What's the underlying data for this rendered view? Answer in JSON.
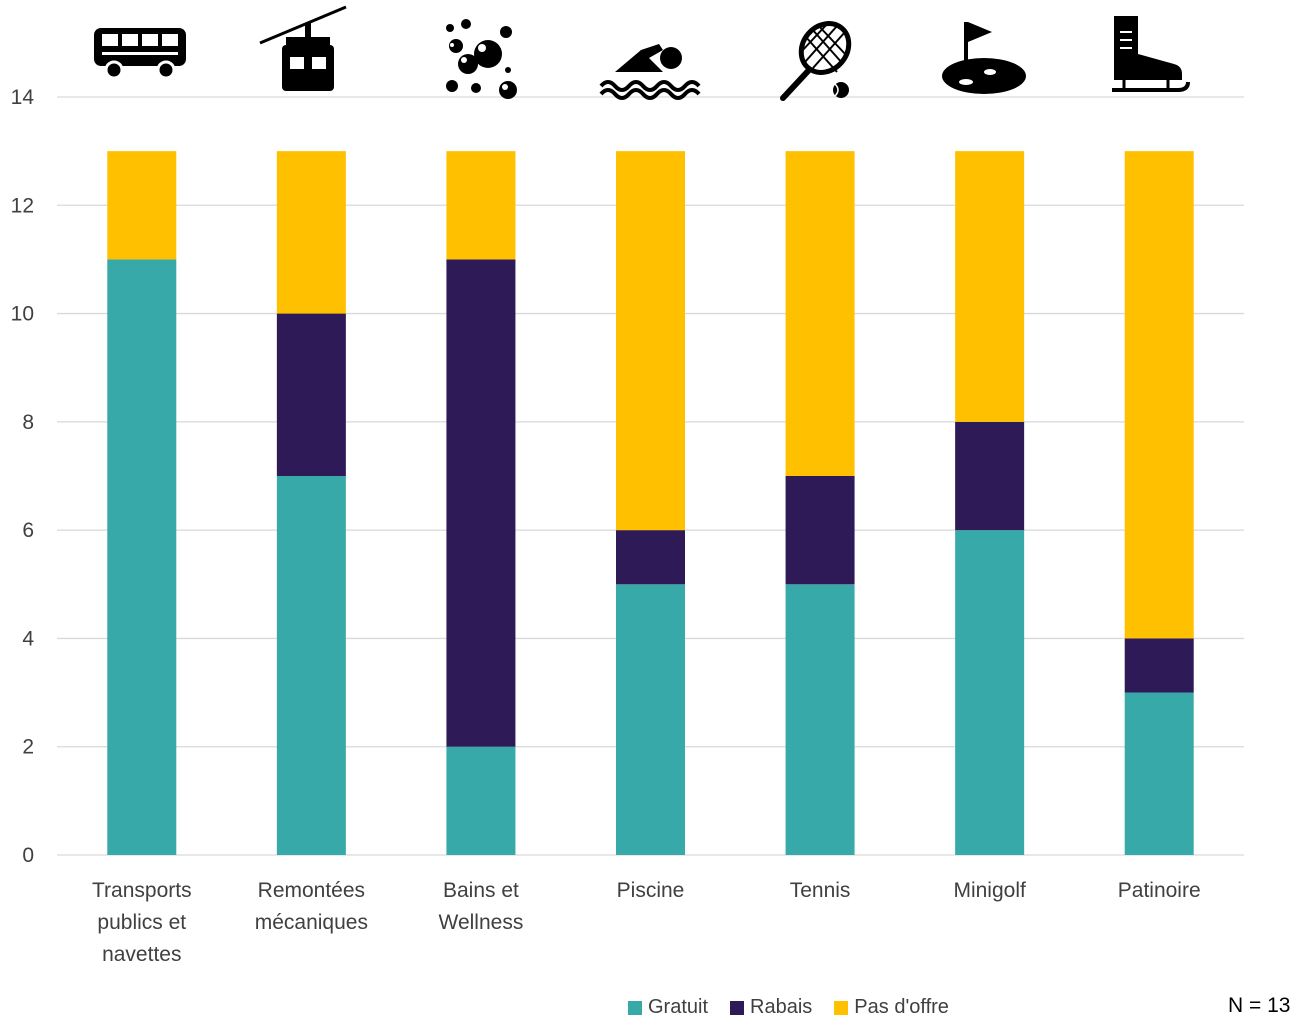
{
  "chart_data": {
    "type": "bar",
    "stacked": true,
    "categories": [
      [
        "Transports",
        "publics et",
        "navettes"
      ],
      [
        "Remontées",
        "mécaniques"
      ],
      [
        "Bains et",
        "Wellness"
      ],
      [
        "Piscine"
      ],
      [
        "Tennis"
      ],
      [
        "Minigolf"
      ],
      [
        "Patinoire"
      ]
    ],
    "category_icons": [
      "bus-icon",
      "cable-car-icon",
      "bubbles-icon",
      "swimmer-icon",
      "tennis-icon",
      "minigolf-icon",
      "ice-skate-icon"
    ],
    "series": [
      {
        "name": "Gratuit",
        "color": "#37a9a9",
        "values": [
          11,
          7,
          2,
          5,
          5,
          6,
          3
        ]
      },
      {
        "name": "Rabais",
        "color": "#2e1a56",
        "values": [
          0,
          3,
          9,
          1,
          2,
          2,
          1
        ]
      },
      {
        "name": "Pas d'offre",
        "color": "#ffc000",
        "values": [
          2,
          3,
          2,
          7,
          6,
          5,
          9
        ]
      }
    ],
    "yticks": [
      "0",
      "2",
      "4",
      "6",
      "8",
      "10",
      "12",
      "14"
    ],
    "ylim": [
      0,
      14
    ],
    "grid": true,
    "legend_position": "bottom",
    "note": "N = 13"
  }
}
